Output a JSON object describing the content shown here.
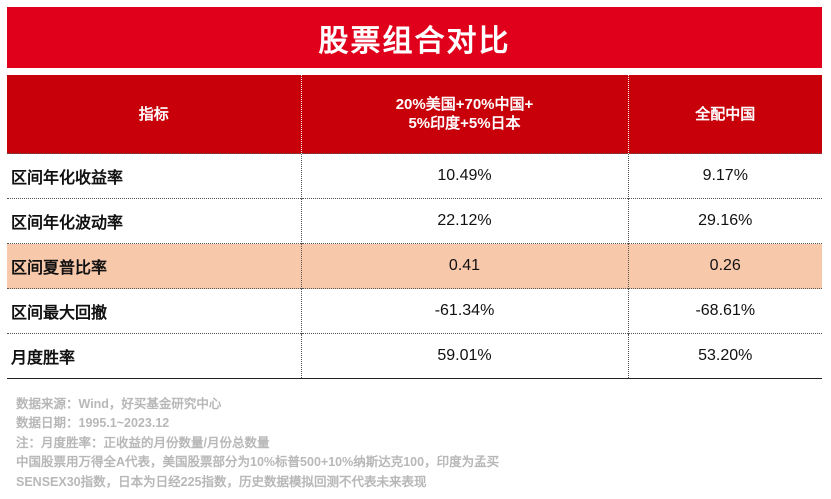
{
  "title": "股票组合对比",
  "table": {
    "headers": {
      "metric": "指标",
      "portfolio_line1": "20%美国+70%中国+",
      "portfolio_line2": "5%印度+5%日本",
      "china_only": "全配中国"
    },
    "rows": [
      {
        "metric": "区间年化收益率",
        "portfolio": "10.49%",
        "china_only": "9.17%",
        "highlight": false
      },
      {
        "metric": "区间年化波动率",
        "portfolio": "22.12%",
        "china_only": "29.16%",
        "highlight": false
      },
      {
        "metric": "区间夏普比率",
        "portfolio": "0.41",
        "china_only": "0.26",
        "highlight": true
      },
      {
        "metric": "区间最大回撤",
        "portfolio": "-61.34%",
        "china_only": "-68.61%",
        "highlight": false
      },
      {
        "metric": "月度胜率",
        "portfolio": "59.01%",
        "china_only": "53.20%",
        "highlight": false
      }
    ]
  },
  "notes": [
    "数据来源：Wind，好买基金研究中心",
    "数据日期：1995.1~2023.12",
    "注：月度胜率：正收益的月份数量/月份总数量",
    "中国股票用万得全A代表，美国股票部分为10%标普500+10%纳斯达克100，印度为孟买",
    "SENSEX30指数，日本为日经225指数，历史数据模拟回测不代表未来表现"
  ],
  "colors": {
    "title_bg": "#e0001c",
    "header_bg": "#c8000a",
    "highlight_row_bg": "#f8c8aa",
    "note_text": "#b8b8b8"
  }
}
